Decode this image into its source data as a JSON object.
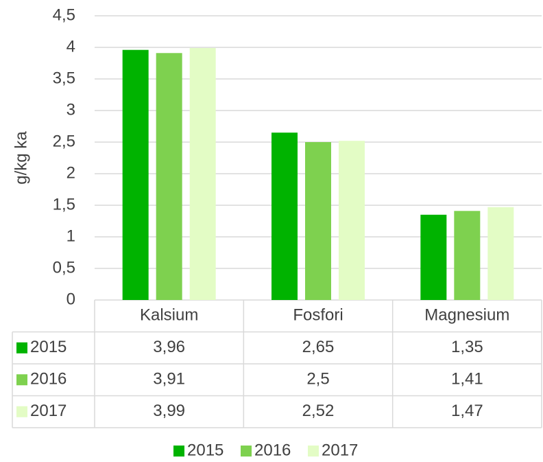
{
  "chart_data": {
    "type": "bar",
    "y_label": "g/kg ka",
    "categories": [
      "Kalsium",
      "Fosfori",
      "Magnesium"
    ],
    "series": [
      {
        "name": "2015",
        "color": "#00b300",
        "values": [
          3.96,
          2.65,
          1.35
        ],
        "value_labels": [
          "3,96",
          "2,65",
          "1,35"
        ]
      },
      {
        "name": "2016",
        "color": "#7ed14f",
        "values": [
          3.91,
          2.5,
          1.41
        ],
        "value_labels": [
          "3,91",
          "2,5",
          "1,41"
        ]
      },
      {
        "name": "2017",
        "color": "#e3fcc5",
        "values": [
          3.99,
          2.52,
          1.47
        ],
        "value_labels": [
          "3,99",
          "2,52",
          "1,47"
        ]
      }
    ],
    "ylim": [
      0,
      4.5
    ],
    "yticks": [
      0,
      {
        "value": 0.5,
        "label": "0,5"
      },
      1,
      {
        "value": 1.5,
        "label": "1,5"
      },
      2,
      {
        "value": 2.5,
        "label": "2,5"
      },
      3,
      {
        "value": 3.5,
        "label": "3,5"
      },
      4,
      {
        "value": 4.5,
        "label": "4,5"
      }
    ],
    "grid": true,
    "legend": "bottom",
    "data_table": true
  }
}
